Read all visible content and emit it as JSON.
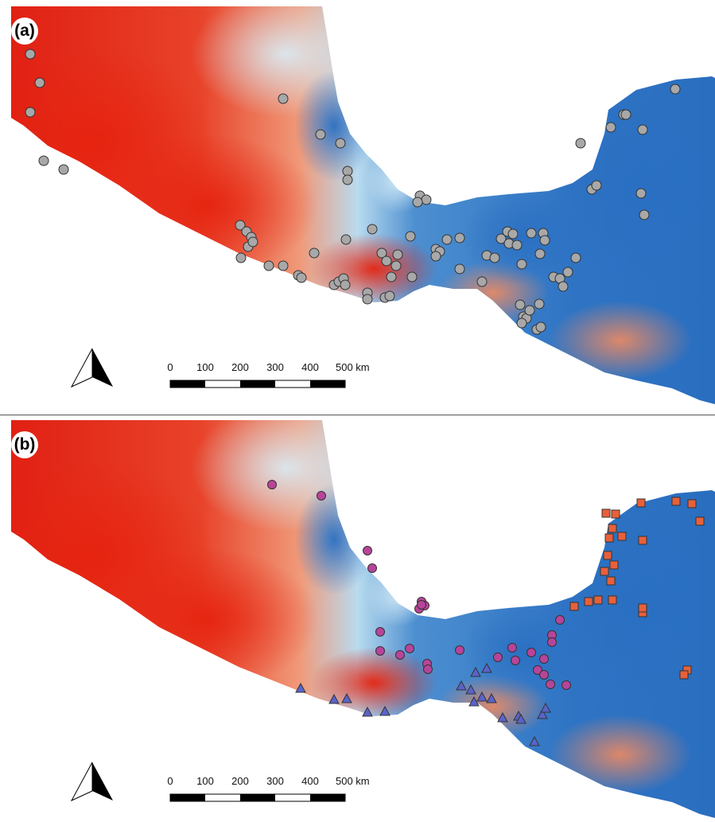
{
  "panels": [
    {
      "label": "(a)"
    },
    {
      "label": "(b)"
    }
  ],
  "scale_bar": {
    "ticks": [
      "0",
      "100",
      "200",
      "300",
      "400",
      "500 km"
    ]
  },
  "north_arrow": {
    "icon": "north-arrow-icon"
  },
  "colors": {
    "warm": "#e8321f",
    "cool": "#3a7cc6",
    "point_gray": "#a8a8a8",
    "point_magenta": "#b8449a",
    "point_triangle": "#5b63c9",
    "point_square": "#e8603a"
  }
}
